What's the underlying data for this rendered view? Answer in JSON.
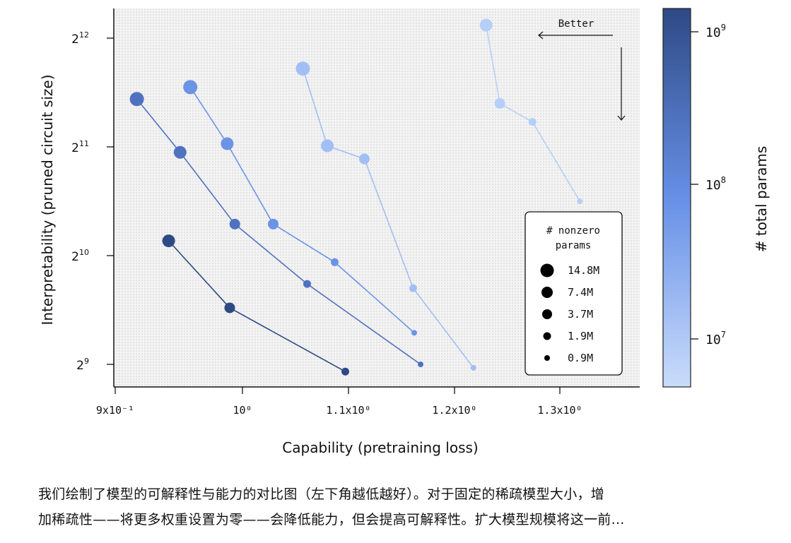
{
  "chart_data": {
    "type": "scatter",
    "title": "",
    "xlabel": "Capability (pretraining loss)",
    "ylabel": "Interpretability (pruned circuit size)",
    "xscale": "log",
    "yscale": "log2",
    "xticks": [
      {
        "value": 0.9,
        "label": "9x10⁻¹"
      },
      {
        "value": 1.0,
        "label": "10⁰"
      },
      {
        "value": 1.1,
        "label": "1.1x10⁰"
      },
      {
        "value": 1.2,
        "label": "1.2x10⁰"
      },
      {
        "value": 1.3,
        "label": "1.3x10⁰"
      }
    ],
    "yticks": [
      {
        "value": 512,
        "base": "2",
        "exp": "9"
      },
      {
        "value": 1024,
        "base": "2",
        "exp": "10"
      },
      {
        "value": 2048,
        "base": "2",
        "exp": "11"
      },
      {
        "value": 4096,
        "base": "2",
        "exp": "12"
      }
    ],
    "series": [
      {
        "name": "~1e9 total params",
        "total_params": 1000000000,
        "color": "#2e4a85",
        "points": [
          {
            "x": 0.942,
            "y": 1125,
            "nonzero": "7.4M"
          },
          {
            "x": 0.99,
            "y": 734,
            "nonzero": "3.7M"
          },
          {
            "x": 1.097,
            "y": 489,
            "nonzero": "1.9M"
          }
        ]
      },
      {
        "name": "~3e8 total params",
        "total_params": 300000000,
        "color": "#4f72c0",
        "points": [
          {
            "x": 0.917,
            "y": 2778,
            "nonzero": "14.8M"
          },
          {
            "x": 0.951,
            "y": 1978,
            "nonzero": "7.4M"
          },
          {
            "x": 0.994,
            "y": 1252,
            "nonzero": "3.7M"
          },
          {
            "x": 1.061,
            "y": 855,
            "nonzero": "1.9M"
          },
          {
            "x": 1.168,
            "y": 512,
            "nonzero": "0.9M"
          }
        ]
      },
      {
        "name": "~1e8 total params",
        "total_params": 100000000,
        "color": "#6b93e6",
        "points": [
          {
            "x": 0.959,
            "y": 2998,
            "nonzero": "14.8M"
          },
          {
            "x": 0.988,
            "y": 2090,
            "nonzero": "7.4M"
          },
          {
            "x": 1.029,
            "y": 1252,
            "nonzero": "3.7M"
          },
          {
            "x": 1.087,
            "y": 982,
            "nonzero": "1.9M"
          },
          {
            "x": 1.162,
            "y": 626,
            "nonzero": "0.9M"
          }
        ]
      },
      {
        "name": "~3e7 total params",
        "total_params": 30000000,
        "color": "#a2bff5",
        "points": [
          {
            "x": 1.057,
            "y": 3373,
            "nonzero": "14.8M"
          },
          {
            "x": 1.08,
            "y": 2062,
            "nonzero": "7.4M"
          },
          {
            "x": 1.115,
            "y": 1897,
            "nonzero": "3.7M"
          },
          {
            "x": 1.161,
            "y": 832,
            "nonzero": "1.9M"
          },
          {
            "x": 1.218,
            "y": 501,
            "nonzero": "0.9M"
          }
        ]
      },
      {
        "name": "~1e7 total params",
        "total_params": 10000000,
        "color": "#b5cff8",
        "points": [
          {
            "x": 1.23,
            "y": 4450,
            "nonzero": "7.4M"
          },
          {
            "x": 1.243,
            "y": 2702,
            "nonzero": "3.7M"
          },
          {
            "x": 1.274,
            "y": 2402,
            "nonzero": "1.9M"
          },
          {
            "x": 1.319,
            "y": 1448,
            "nonzero": "0.9M"
          }
        ]
      }
    ],
    "size_legend": {
      "title_line1": "# nonzero",
      "title_line2": "params",
      "placement": "bottom-right",
      "entries": [
        "14.8M",
        "7.4M",
        "3.7M",
        "1.9M",
        "0.9M"
      ]
    },
    "annotation": "Better",
    "colorbar": {
      "label": "# total params",
      "scale": "log",
      "ticks": [
        {
          "base": "10",
          "exp": "9",
          "value": 1000000000
        },
        {
          "base": "10",
          "exp": "8",
          "value": 100000000
        },
        {
          "base": "10",
          "exp": "7",
          "value": 10000000
        }
      ],
      "color_low": "#cadcfb",
      "color_mid": "#6690e6",
      "color_high": "#2e4a85"
    }
  },
  "caption": {
    "line1": "我们绘制了模型的可解释性与能力的对比图（左下角越低越好）。对于固定的稀疏模型大小，增",
    "line2": "加稀疏性——将更多权重设置为零——会降低能力，但会提高可解释性。扩大模型规模将这一前..."
  }
}
